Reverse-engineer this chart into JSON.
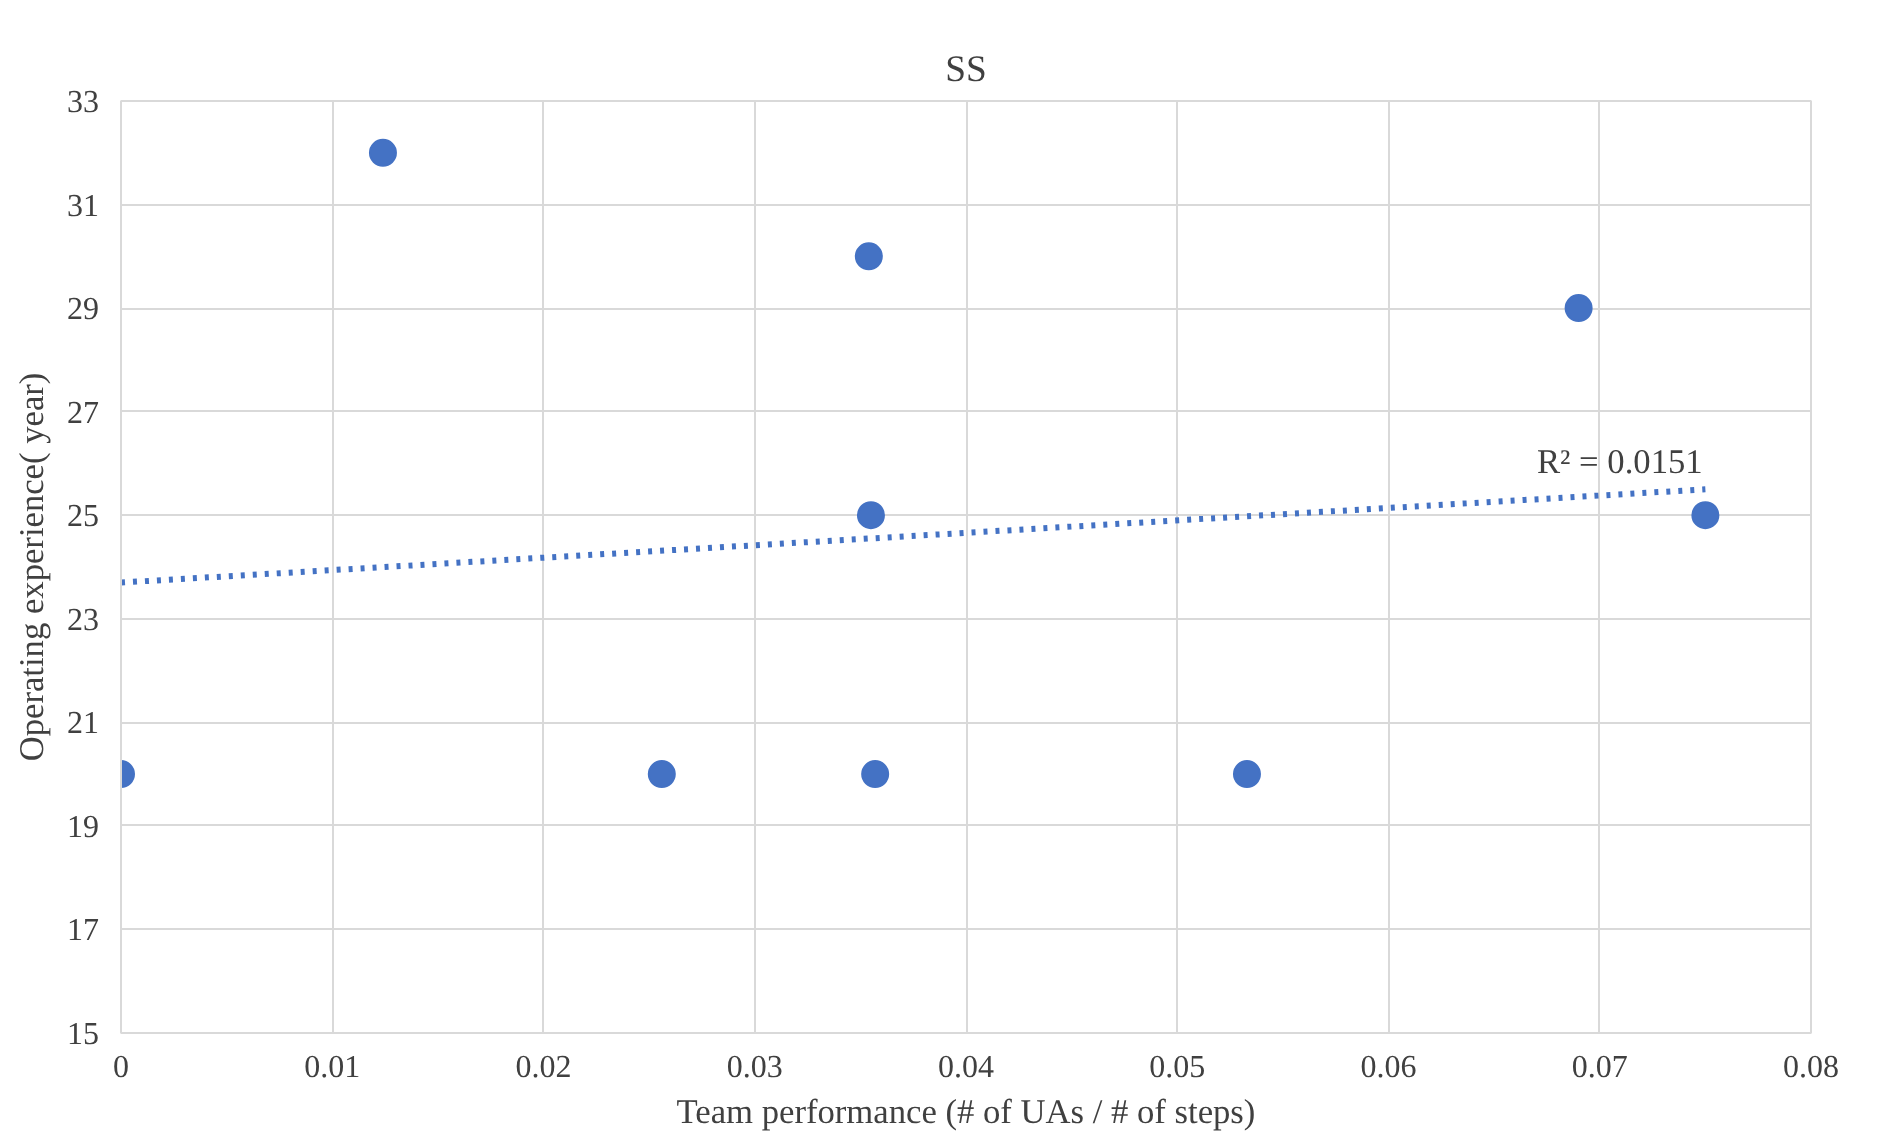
{
  "chart_data": {
    "type": "scatter",
    "title": "SS",
    "xlabel": "Team performance (# of UAs / # of steps)",
    "ylabel": "Operating experience( year)",
    "xlim": [
      0,
      0.08
    ],
    "xticks": [
      0,
      0.01,
      0.02,
      0.03,
      0.04,
      0.05,
      0.06,
      0.07,
      0.08
    ],
    "ylim": [
      15,
      33
    ],
    "yticks": [
      15,
      17,
      19,
      21,
      23,
      25,
      27,
      29,
      31,
      33
    ],
    "grid": true,
    "series": [
      {
        "marker": "circle",
        "color": "#4472c4",
        "x": [
          0,
          0.0124,
          0.0256,
          0.0354,
          0.0355,
          0.0357,
          0.0533,
          0.069,
          0.075
        ],
        "values": [
          20,
          32,
          20,
          30,
          25,
          20,
          20,
          29,
          25
        ]
      },
      {
        "type": "line",
        "line_style": "dotted",
        "color": "#4472c4",
        "x": [
          0,
          0.075
        ],
        "values": [
          23.7,
          25.5
        ]
      }
    ],
    "annotations": [
      {
        "text": "R² = 0.0151",
        "x": 0.0675,
        "y": 25.5
      }
    ]
  }
}
